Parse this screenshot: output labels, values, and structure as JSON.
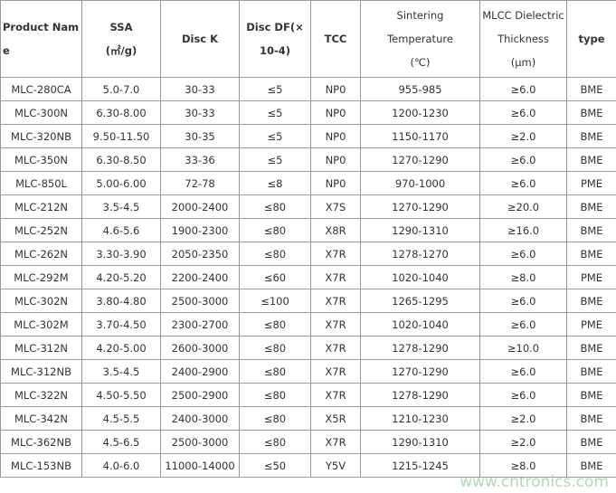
{
  "table": {
    "header": [
      "Product Name",
      "SSA\n(㎡/g)",
      "Disc K",
      "Disc DF(×\n10-4)",
      "TCC",
      "Sintering Temperature\n(℃)",
      "MLCC Dielectric Thickness\n(μm)",
      "type"
    ],
    "rows": [
      [
        "MLC-280CA",
        "5.0-7.0",
        "30-33",
        "≤5",
        "NP0",
        "955-985",
        "≥6.0",
        "BME"
      ],
      [
        "MLC-300N",
        "6.30-8.00",
        "30-33",
        "≤5",
        "NP0",
        "1200-1230",
        "≥6.0",
        "BME"
      ],
      [
        "MLC-320NB",
        "9.50-11.50",
        "30-35",
        "≤5",
        "NP0",
        "1150-1170",
        "≥2.0",
        "BME"
      ],
      [
        "MLC-350N",
        "6.30-8.50",
        "33-36",
        "≤5",
        "NP0",
        "1270-1290",
        "≥6.0",
        "BME"
      ],
      [
        "MLC-850L",
        "5.00-6.00",
        "72-78",
        "≤8",
        "NP0",
        "970-1000",
        "≥6.0",
        "PME"
      ],
      [
        "MLC-212N",
        "3.5-4.5",
        "2000-2400",
        "≤80",
        "X7S",
        "1270-1290",
        "≥20.0",
        "BME"
      ],
      [
        "MLC-252N",
        "4.6-5.6",
        "1900-2300",
        "≤80",
        "X8R",
        "1290-1310",
        "≥16.0",
        "BME"
      ],
      [
        "MLC-262N",
        "3.30-3.90",
        "2050-2350",
        "≤80",
        "X7R",
        "1278-1270",
        "≥6.0",
        "BME"
      ],
      [
        "MLC-292M",
        "4.20-5.20",
        "2200-2400",
        "≤60",
        "X7R",
        "1020-1040",
        "≥8.0",
        "PME"
      ],
      [
        "MLC-302N",
        "3.80-4.80",
        "2500-3000",
        "≤100",
        "X7R",
        "1265-1295",
        "≥6.0",
        "BME"
      ],
      [
        "MLC-302M",
        "3.70-4.50",
        "2300-2700",
        "≤80",
        "X7R",
        "1020-1040",
        "≥6.0",
        "PME"
      ],
      [
        "MLC-312N",
        "4.20-5.00",
        "2600-3000",
        "≤80",
        "X7R",
        "1278-1290",
        "≥10.0",
        "BME"
      ],
      [
        "MLC-312NB",
        "3.5-4.5",
        "2400-2900",
        "≤80",
        "X7R",
        "1270-1290",
        "≥6.0",
        "BME"
      ],
      [
        "MLC-322N",
        "4.50-5.50",
        "2500-2900",
        "≤80",
        "X7R",
        "1278-1290",
        "≥6.0",
        "BME"
      ],
      [
        "MLC-342N",
        "4.5-5.5",
        "2400-3000",
        "≤80",
        "X5R",
        "1210-1230",
        "≥2.0",
        "BME"
      ],
      [
        "MLC-362NB",
        "4.5-6.5",
        "2500-3000",
        "≤80",
        "X7R",
        "1290-1310",
        "≥2.0",
        "BME"
      ],
      [
        "MLC-153NB",
        "4.0-6.0",
        "11000-14000",
        "≤50",
        "Y5V",
        "1215-1245",
        "≥8.0",
        "BME"
      ]
    ]
  },
  "watermark": "www.cntronics.com"
}
